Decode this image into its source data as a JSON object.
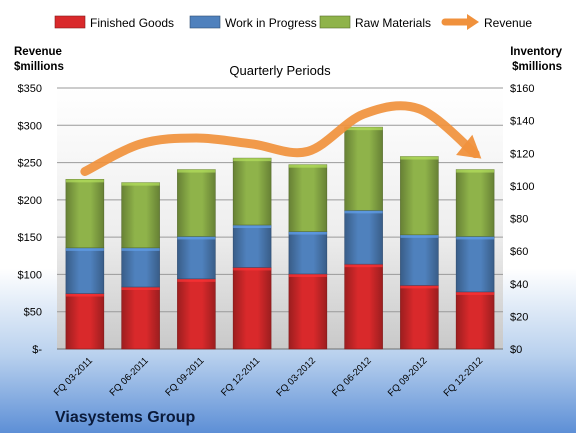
{
  "chart_data": {
    "type": "bar",
    "subtype": "stacked-bar-with-line",
    "title": "Quarterly Periods",
    "company": "Viasystems Group",
    "categories": [
      "FQ 03-2011",
      "FQ 06-2011",
      "FQ 09-2011",
      "FQ 12-2011",
      "FQ 03-2012",
      "FQ 06-2012",
      "FQ 09-2012",
      "FQ 12-2012"
    ],
    "y_left": {
      "label_line1": "Revenue",
      "label_line2": "$millions",
      "range": [
        0,
        350
      ],
      "ticks": [
        0,
        50,
        100,
        150,
        200,
        250,
        300,
        350
      ],
      "tick_labels": [
        "$-",
        "$50",
        "$100",
        "$150",
        "$200",
        "$250",
        "$300",
        "$350"
      ]
    },
    "y_right": {
      "label_line1": "Inventory",
      "label_line2": "$millions",
      "range": [
        0,
        160
      ],
      "ticks": [
        0,
        20,
        40,
        60,
        80,
        100,
        120,
        140,
        160
      ],
      "tick_labels": [
        "$0",
        "$20",
        "$40",
        "$60",
        "$80",
        "$100",
        "$120",
        "$140",
        "$160"
      ]
    },
    "series": [
      {
        "name": "Finished Goods",
        "kind": "bar",
        "axis": "right",
        "color": "#d9292b",
        "values": [
          34,
          38,
          43,
          50,
          46,
          52,
          39,
          35
        ]
      },
      {
        "name": "Work in Progress",
        "kind": "bar",
        "axis": "right",
        "color": "#4f81bd",
        "values": [
          28,
          24,
          26,
          26,
          26,
          33,
          31,
          34
        ]
      },
      {
        "name": "Raw Materials",
        "kind": "bar",
        "axis": "right",
        "color": "#8fb34a",
        "values": [
          42,
          40,
          41,
          41,
          41,
          51,
          48,
          41
        ]
      },
      {
        "name": "Revenue",
        "kind": "line",
        "axis": "left",
        "color": "#f0913c",
        "values": [
          238,
          275,
          283,
          275,
          265,
          315,
          322,
          262
        ]
      }
    ],
    "legend_position": "top",
    "grid": true
  }
}
